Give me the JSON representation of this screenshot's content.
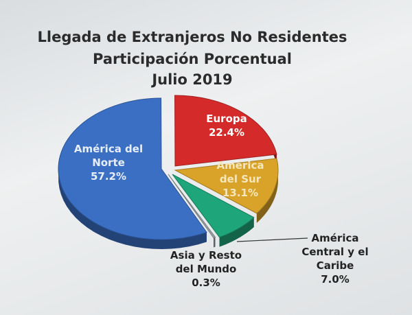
{
  "chart_data": {
    "type": "pie",
    "title": "Llegada de Extranjeros No Residentes",
    "subtitle": "Participación Porcentual",
    "period": "Julio 2019",
    "slices": [
      {
        "label_lines": [
          "América del",
          "Norte"
        ],
        "value": 57.2,
        "value_text": "57.2%",
        "color": "#3a6fc4"
      },
      {
        "label_lines": [
          "Europa"
        ],
        "value": 22.4,
        "value_text": "22.4%",
        "color": "#d42a2a"
      },
      {
        "label_lines": [
          "América",
          "del Sur"
        ],
        "value": 13.1,
        "value_text": "13.1%",
        "color": "#d9a32a"
      },
      {
        "label_lines": [
          "América",
          "Central y el",
          "Caribe"
        ],
        "value": 7.0,
        "value_text": "7.0%",
        "color": "#1fa57a"
      },
      {
        "label_lines": [
          "Asia y Resto",
          "del Mundo"
        ],
        "value": 0.3,
        "value_text": "0.3%",
        "color": "#9aa3a8"
      }
    ],
    "legend": "none"
  }
}
